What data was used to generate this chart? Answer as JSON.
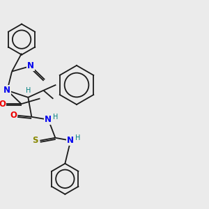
{
  "background_color": "#ebebeb",
  "bond_color": "#1a1a1a",
  "atom_colors": {
    "N": "#0000ee",
    "O": "#ee0000",
    "S": "#888800",
    "H": "#008080",
    "C": "#1a1a1a"
  },
  "figsize": [
    3.0,
    3.0
  ],
  "dpi": 100,
  "xlim": [
    0,
    300
  ],
  "ylim": [
    0,
    300
  ],
  "bond_lw": 1.3,
  "font_size_atom": 8.5,
  "font_size_h": 7.0
}
